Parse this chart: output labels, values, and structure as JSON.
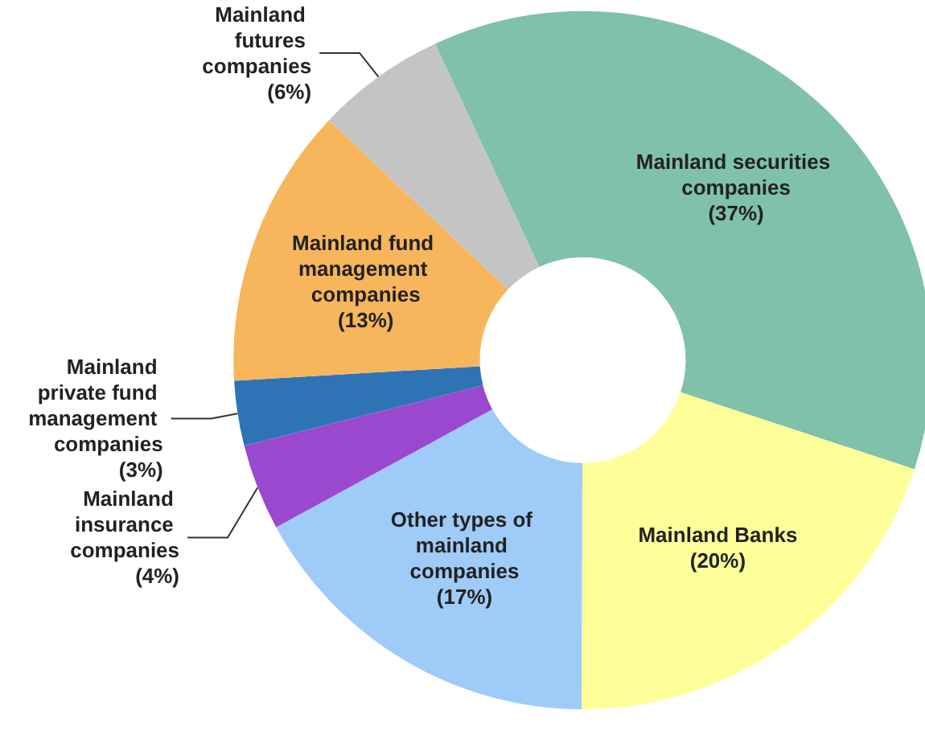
{
  "chart_data": {
    "type": "donut",
    "categories": [
      "Mainland securities companies",
      "Mainland Banks",
      "Other types of mainland companies",
      "Mainland insurance companies",
      "Mainland private fund management companies",
      "Mainland fund management companies",
      "Mainland futures companies"
    ],
    "values": [
      37,
      20,
      17,
      4,
      3,
      13,
      6
    ],
    "value_labels": [
      "(37%)",
      "(20%)",
      "(17%)",
      "(4%)",
      "(3%)",
      "(13%)",
      "(6%)"
    ],
    "colors": [
      "#80c1a9",
      "#ffff99",
      "#9ecbf7",
      "#9a48cf",
      "#2e74b5",
      "#f7b55c",
      "#c4c4c4"
    ]
  }
}
